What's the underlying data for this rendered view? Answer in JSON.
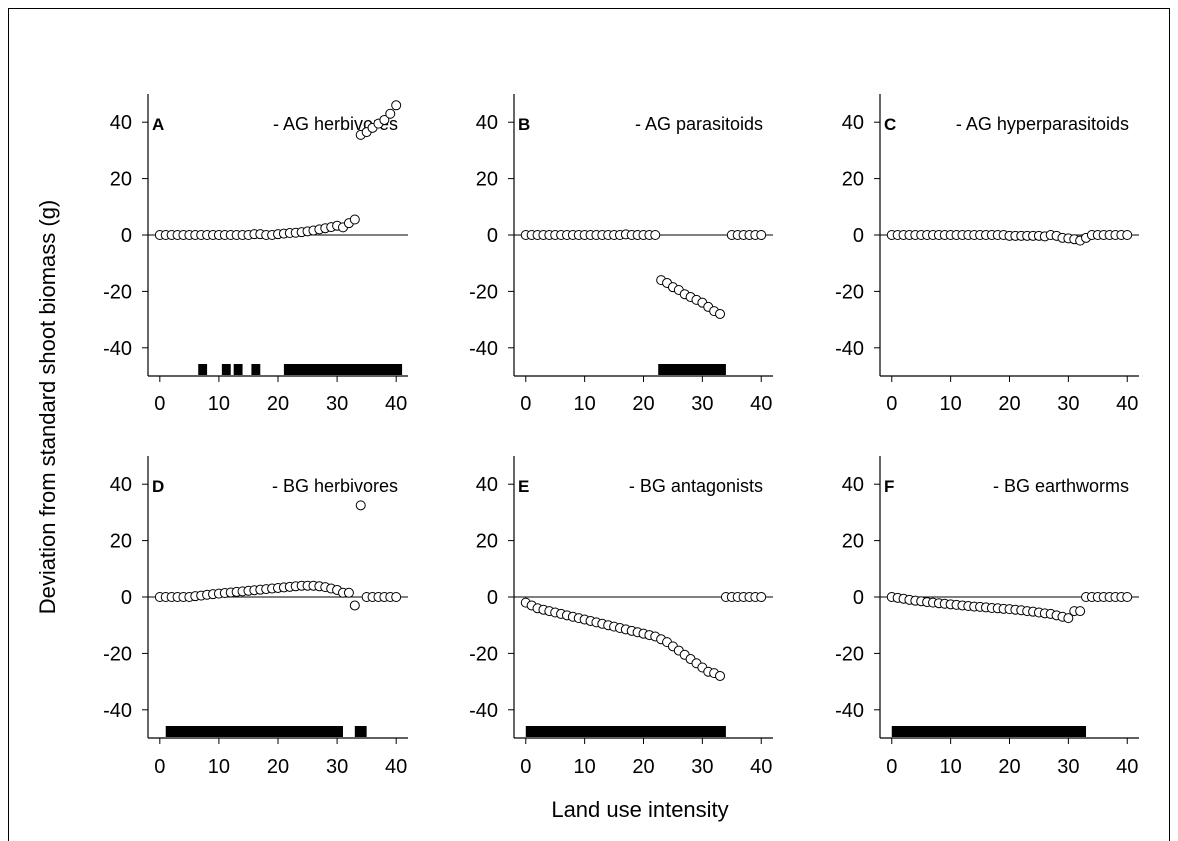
{
  "ylabel": "Deviation from standard shoot biomass (g)",
  "xlabel": "Land use intensity",
  "xticks": [
    0,
    10,
    20,
    30,
    40
  ],
  "yticks": [
    40,
    20,
    0,
    -20,
    -40
  ],
  "chart_data": [
    {
      "type": "scatter",
      "letter": "A",
      "title": "- AG herbivores",
      "xlim": [
        -2,
        42
      ],
      "ylim": [
        -50,
        50
      ],
      "points": [
        [
          0,
          0
        ],
        [
          1,
          0
        ],
        [
          2,
          0
        ],
        [
          3,
          0
        ],
        [
          4,
          0
        ],
        [
          5,
          0
        ],
        [
          6,
          0
        ],
        [
          7,
          0
        ],
        [
          8,
          0
        ],
        [
          9,
          0
        ],
        [
          10,
          0
        ],
        [
          11,
          0
        ],
        [
          12,
          0
        ],
        [
          13,
          0
        ],
        [
          14,
          0
        ],
        [
          15,
          0
        ],
        [
          16,
          0.3
        ],
        [
          17,
          0.3
        ],
        [
          18,
          0
        ],
        [
          19,
          0
        ],
        [
          20,
          0.3
        ],
        [
          21,
          0.5
        ],
        [
          22,
          0.7
        ],
        [
          23,
          0.8
        ],
        [
          24,
          1
        ],
        [
          25,
          1.3
        ],
        [
          26,
          1.6
        ],
        [
          27,
          2
        ],
        [
          28,
          2.4
        ],
        [
          29,
          2.8
        ],
        [
          30,
          3.3
        ],
        [
          31,
          2.7
        ],
        [
          32,
          4.2
        ],
        [
          33,
          5.5
        ],
        [
          34,
          35.5
        ],
        [
          35,
          36.5
        ],
        [
          36,
          38
        ],
        [
          37,
          39.5
        ],
        [
          38,
          40.8
        ],
        [
          39,
          43
        ],
        [
          40,
          46
        ]
      ],
      "bars": [
        [
          6.5,
          8
        ],
        [
          10.5,
          12
        ],
        [
          12.5,
          14
        ],
        [
          15.5,
          17
        ],
        [
          21,
          41
        ]
      ]
    },
    {
      "type": "scatter",
      "letter": "B",
      "title": "- AG parasitoids",
      "xlim": [
        -2,
        42
      ],
      "ylim": [
        -50,
        50
      ],
      "points": [
        [
          0,
          0
        ],
        [
          1,
          0
        ],
        [
          2,
          0
        ],
        [
          3,
          0
        ],
        [
          4,
          0
        ],
        [
          5,
          0
        ],
        [
          6,
          0
        ],
        [
          7,
          0
        ],
        [
          8,
          0
        ],
        [
          9,
          0
        ],
        [
          10,
          0
        ],
        [
          11,
          0
        ],
        [
          12,
          0
        ],
        [
          13,
          0
        ],
        [
          14,
          0
        ],
        [
          15,
          0
        ],
        [
          16,
          0
        ],
        [
          17,
          0.2
        ],
        [
          18,
          0
        ],
        [
          19,
          0
        ],
        [
          20,
          0
        ],
        [
          21,
          0
        ],
        [
          22,
          0
        ],
        [
          23,
          -16
        ],
        [
          24,
          -17
        ],
        [
          25,
          -18.5
        ],
        [
          26,
          -19.5
        ],
        [
          27,
          -21
        ],
        [
          28,
          -22
        ],
        [
          29,
          -23
        ],
        [
          30,
          -24
        ],
        [
          31,
          -25.5
        ],
        [
          32,
          -27
        ],
        [
          33,
          -28
        ],
        [
          35,
          0
        ],
        [
          36,
          0
        ],
        [
          37,
          0
        ],
        [
          38,
          0
        ],
        [
          39,
          0
        ],
        [
          40,
          0
        ]
      ],
      "bars": [
        [
          22.5,
          34
        ]
      ]
    },
    {
      "type": "scatter",
      "letter": "C",
      "title": "- AG hyperparasitoids",
      "xlim": [
        -2,
        42
      ],
      "ylim": [
        -50,
        50
      ],
      "points": [
        [
          0,
          0
        ],
        [
          1,
          0
        ],
        [
          2,
          0
        ],
        [
          3,
          0
        ],
        [
          4,
          0
        ],
        [
          5,
          0
        ],
        [
          6,
          0
        ],
        [
          7,
          0
        ],
        [
          8,
          0
        ],
        [
          9,
          0
        ],
        [
          10,
          0
        ],
        [
          11,
          0
        ],
        [
          12,
          0
        ],
        [
          13,
          0
        ],
        [
          14,
          0
        ],
        [
          15,
          0
        ],
        [
          16,
          0
        ],
        [
          17,
          0
        ],
        [
          18,
          0
        ],
        [
          19,
          0
        ],
        [
          20,
          -0.3
        ],
        [
          21,
          -0.3
        ],
        [
          22,
          -0.3
        ],
        [
          23,
          -0.3
        ],
        [
          24,
          -0.3
        ],
        [
          25,
          -0.3
        ],
        [
          26,
          -0.5
        ],
        [
          27,
          0
        ],
        [
          28,
          -0.3
        ],
        [
          29,
          -1
        ],
        [
          30,
          -1.2
        ],
        [
          31,
          -1.5
        ],
        [
          32,
          -2
        ],
        [
          33,
          -1
        ],
        [
          34,
          0
        ],
        [
          35,
          0
        ],
        [
          36,
          0
        ],
        [
          37,
          0
        ],
        [
          38,
          0
        ],
        [
          39,
          0
        ],
        [
          40,
          0
        ]
      ],
      "bars": []
    },
    {
      "type": "scatter",
      "letter": "D",
      "title": "- BG herbivores",
      "xlim": [
        -2,
        42
      ],
      "ylim": [
        -50,
        50
      ],
      "points": [
        [
          0,
          0
        ],
        [
          1,
          0
        ],
        [
          2,
          0
        ],
        [
          3,
          0
        ],
        [
          4,
          0
        ],
        [
          5,
          0
        ],
        [
          6,
          0.3
        ],
        [
          7,
          0.5
        ],
        [
          8,
          0.8
        ],
        [
          9,
          1
        ],
        [
          10,
          1.2
        ],
        [
          11,
          1.4
        ],
        [
          12,
          1.6
        ],
        [
          13,
          1.8
        ],
        [
          14,
          2
        ],
        [
          15,
          2.2
        ],
        [
          16,
          2.4
        ],
        [
          17,
          2.6
        ],
        [
          18,
          2.8
        ],
        [
          19,
          3
        ],
        [
          20,
          3.2
        ],
        [
          21,
          3.4
        ],
        [
          22,
          3.6
        ],
        [
          23,
          3.8
        ],
        [
          24,
          4
        ],
        [
          25,
          4
        ],
        [
          26,
          4
        ],
        [
          27,
          3.8
        ],
        [
          28,
          3.5
        ],
        [
          29,
          3
        ],
        [
          30,
          2.5
        ],
        [
          31,
          1.5
        ],
        [
          32,
          1.5
        ],
        [
          33,
          -3
        ],
        [
          34,
          32.5
        ],
        [
          35,
          0
        ],
        [
          36,
          0
        ],
        [
          37,
          0
        ],
        [
          38,
          0
        ],
        [
          39,
          0
        ],
        [
          40,
          0
        ]
      ],
      "bars": [
        [
          1,
          31
        ],
        [
          33,
          35
        ]
      ]
    },
    {
      "type": "scatter",
      "letter": "E",
      "title": "- BG antagonists",
      "xlim": [
        -2,
        42
      ],
      "ylim": [
        -50,
        50
      ],
      "points": [
        [
          0,
          -2
        ],
        [
          1,
          -3
        ],
        [
          2,
          -4
        ],
        [
          3,
          -4.5
        ],
        [
          4,
          -5
        ],
        [
          5,
          -5.5
        ],
        [
          6,
          -6
        ],
        [
          7,
          -6.5
        ],
        [
          8,
          -7
        ],
        [
          9,
          -7.5
        ],
        [
          10,
          -8
        ],
        [
          11,
          -8.5
        ],
        [
          12,
          -9
        ],
        [
          13,
          -9.5
        ],
        [
          14,
          -10
        ],
        [
          15,
          -10.5
        ],
        [
          16,
          -11
        ],
        [
          17,
          -11.5
        ],
        [
          18,
          -12
        ],
        [
          19,
          -12.5
        ],
        [
          20,
          -13
        ],
        [
          21,
          -13.5
        ],
        [
          22,
          -14
        ],
        [
          23,
          -15
        ],
        [
          24,
          -16
        ],
        [
          25,
          -17.5
        ],
        [
          26,
          -19
        ],
        [
          27,
          -20.5
        ],
        [
          28,
          -22
        ],
        [
          29,
          -23.5
        ],
        [
          30,
          -25
        ],
        [
          31,
          -26.5
        ],
        [
          32,
          -27
        ],
        [
          33,
          -28
        ],
        [
          34,
          0
        ],
        [
          35,
          0
        ],
        [
          36,
          0
        ],
        [
          37,
          0
        ],
        [
          38,
          0
        ],
        [
          39,
          0
        ],
        [
          40,
          0
        ]
      ],
      "bars": [
        [
          0,
          34
        ]
      ]
    },
    {
      "type": "scatter",
      "letter": "F",
      "title": "- BG earthworms",
      "xlim": [
        -2,
        42
      ],
      "ylim": [
        -50,
        50
      ],
      "points": [
        [
          0,
          0
        ],
        [
          1,
          -0.3
        ],
        [
          2,
          -0.6
        ],
        [
          3,
          -1
        ],
        [
          4,
          -1.3
        ],
        [
          5,
          -1.5
        ],
        [
          6,
          -1.8
        ],
        [
          7,
          -2
        ],
        [
          8,
          -2.2
        ],
        [
          9,
          -2.4
        ],
        [
          10,
          -2.6
        ],
        [
          11,
          -2.8
        ],
        [
          12,
          -3
        ],
        [
          13,
          -3.2
        ],
        [
          14,
          -3.4
        ],
        [
          15,
          -3.5
        ],
        [
          16,
          -3.7
        ],
        [
          17,
          -3.9
        ],
        [
          18,
          -4
        ],
        [
          19,
          -4.2
        ],
        [
          20,
          -4.3
        ],
        [
          21,
          -4.5
        ],
        [
          22,
          -4.7
        ],
        [
          23,
          -5
        ],
        [
          24,
          -5.2
        ],
        [
          25,
          -5.5
        ],
        [
          26,
          -5.8
        ],
        [
          27,
          -6
        ],
        [
          28,
          -6.5
        ],
        [
          29,
          -7
        ],
        [
          30,
          -7.5
        ],
        [
          31,
          -5
        ],
        [
          32,
          -5
        ],
        [
          33,
          0
        ],
        [
          34,
          0
        ],
        [
          35,
          0
        ],
        [
          36,
          0
        ],
        [
          37,
          0
        ],
        [
          38,
          0
        ],
        [
          39,
          0
        ],
        [
          40,
          0
        ]
      ],
      "bars": [
        [
          0,
          33
        ]
      ]
    }
  ]
}
